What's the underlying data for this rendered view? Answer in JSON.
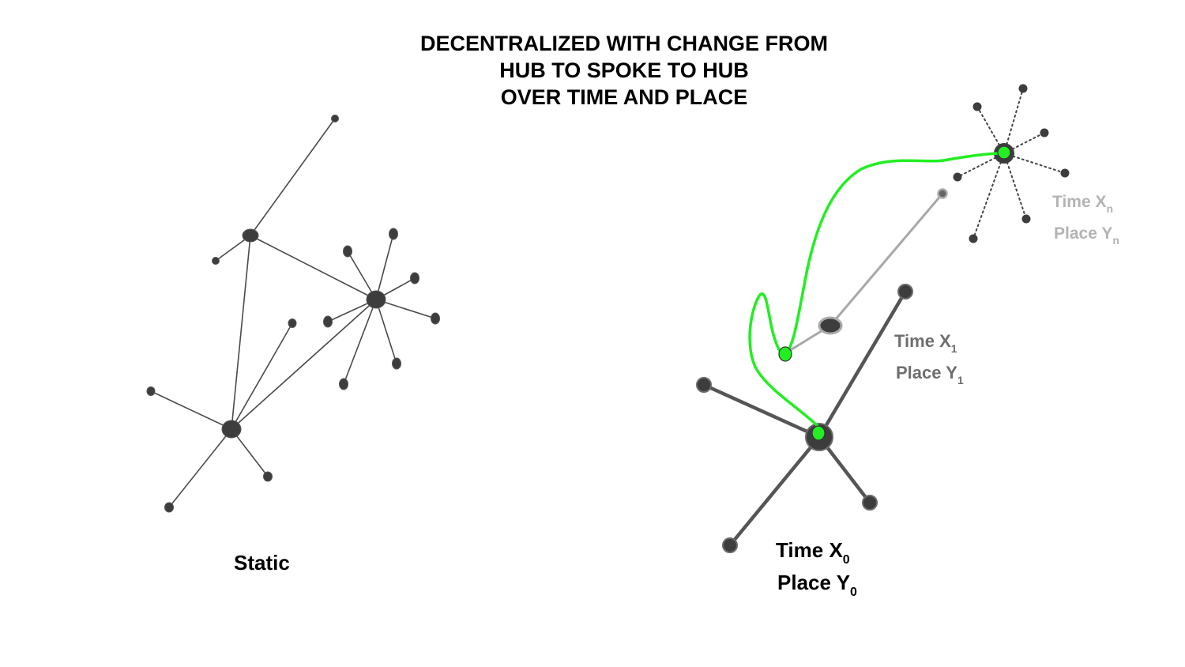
{
  "title": {
    "line1": "DECENTRALIZED WITH CHANGE FROM",
    "line2": "HUB TO SPOKE TO HUB",
    "line3": "OVER TIME AND PLACE"
  },
  "static_network": {
    "label": "Static"
  },
  "dynamic_network": {
    "state0": {
      "time_prefix": "Time X",
      "time_sub": "0",
      "place_prefix": "Place Y",
      "place_sub": "0"
    },
    "state1": {
      "time_prefix": "Time X",
      "time_sub": "1",
      "place_prefix": "Place Y",
      "place_sub": "1"
    },
    "staten": {
      "time_prefix": "Time X",
      "time_sub": "n",
      "place_prefix": "Place Y",
      "place_sub": "n"
    }
  },
  "colors": {
    "node": "#3d3d3d",
    "edge": "#4a4a4a",
    "path": "#22ee22",
    "faded": "#a8a8a8",
    "label_mid": "#6e6e6e",
    "label_light": "#b4b4b4"
  }
}
